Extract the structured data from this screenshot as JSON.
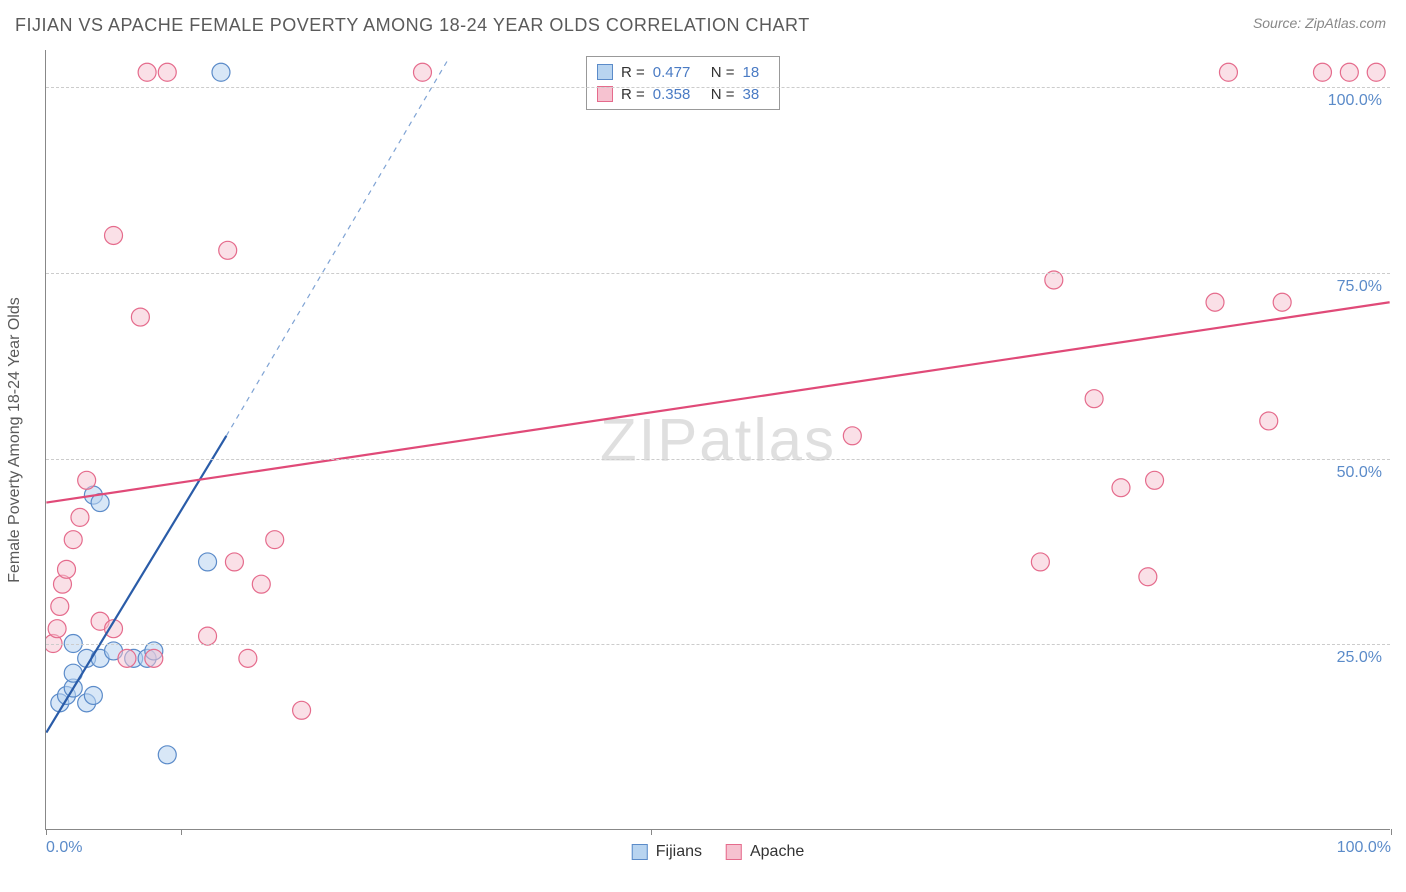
{
  "title": "FIJIAN VS APACHE FEMALE POVERTY AMONG 18-24 YEAR OLDS CORRELATION CHART",
  "source_label": "Source: ZipAtlas.com",
  "y_axis_label": "Female Poverty Among 18-24 Year Olds",
  "watermark_a": "ZIP",
  "watermark_b": "atlas",
  "chart": {
    "type": "scatter",
    "xlim": [
      0,
      100
    ],
    "ylim": [
      0,
      105
    ],
    "x_ticks": [
      0,
      10,
      45,
      100
    ],
    "x_tick_labels": {
      "0": "0.0%",
      "100": "100.0%"
    },
    "y_gridlines": [
      25,
      50,
      75,
      100
    ],
    "y_tick_labels": {
      "25": "25.0%",
      "50": "50.0%",
      "75": "75.0%",
      "100": "100.0%"
    },
    "background_color": "#ffffff",
    "grid_color": "#cccccc",
    "axis_color": "#888888",
    "marker_radius": 9,
    "marker_stroke_width": 1.2,
    "series": [
      {
        "name": "Fijians",
        "fill": "#b8d4f0",
        "stroke": "#5b8bc9",
        "fill_opacity": 0.55,
        "points": [
          [
            1.0,
            17
          ],
          [
            1.5,
            18
          ],
          [
            2.0,
            19
          ],
          [
            3.0,
            17
          ],
          [
            3.5,
            18
          ],
          [
            2.0,
            25
          ],
          [
            3.0,
            23
          ],
          [
            4.0,
            23
          ],
          [
            5.0,
            24
          ],
          [
            6.5,
            23
          ],
          [
            7.5,
            23
          ],
          [
            8.0,
            24
          ],
          [
            3.5,
            45
          ],
          [
            4.0,
            44
          ],
          [
            12.0,
            36
          ],
          [
            9.0,
            10
          ],
          [
            13.0,
            102
          ],
          [
            2.0,
            21
          ]
        ],
        "trend": {
          "x1": 0,
          "y1": 13,
          "x2": 13.4,
          "y2": 53,
          "color": "#2a5ca8",
          "width": 2.2
        },
        "trend_dash": {
          "x1": 13.4,
          "y1": 53,
          "x2": 30,
          "y2": 104,
          "color": "#7fa3d4",
          "width": 1.2
        }
      },
      {
        "name": "Apache",
        "fill": "#f6c2d0",
        "stroke": "#e56b8c",
        "fill_opacity": 0.5,
        "points": [
          [
            0.5,
            25
          ],
          [
            0.8,
            27
          ],
          [
            1.0,
            30
          ],
          [
            1.2,
            33
          ],
          [
            1.5,
            35
          ],
          [
            2.0,
            39
          ],
          [
            2.5,
            42
          ],
          [
            3.0,
            47
          ],
          [
            4.0,
            28
          ],
          [
            5.0,
            27
          ],
          [
            6.0,
            23
          ],
          [
            8.0,
            23
          ],
          [
            12.0,
            26
          ],
          [
            15.0,
            23
          ],
          [
            14.0,
            36
          ],
          [
            17.0,
            39
          ],
          [
            16.0,
            33
          ],
          [
            19.0,
            16
          ],
          [
            7.0,
            69
          ],
          [
            13.5,
            78
          ],
          [
            5.0,
            80
          ],
          [
            7.5,
            102
          ],
          [
            9.0,
            102
          ],
          [
            28.0,
            102
          ],
          [
            60.0,
            53
          ],
          [
            75.0,
            74
          ],
          [
            78.0,
            58
          ],
          [
            74.0,
            36
          ],
          [
            82.0,
            34
          ],
          [
            80.0,
            46
          ],
          [
            82.5,
            47
          ],
          [
            87.0,
            71
          ],
          [
            92.0,
            71
          ],
          [
            91.0,
            55
          ],
          [
            88.0,
            102
          ],
          [
            95.0,
            102
          ],
          [
            97.0,
            102
          ],
          [
            99.0,
            102
          ]
        ],
        "trend": {
          "x1": 0,
          "y1": 44,
          "x2": 100,
          "y2": 71,
          "color": "#e04a78",
          "width": 2.2
        }
      }
    ]
  },
  "top_legend": {
    "rows": [
      {
        "swatch_fill": "#b8d4f0",
        "swatch_stroke": "#5b8bc9",
        "r_label": "R =",
        "r_val": "0.477",
        "n_label": "N =",
        "n_val": "18"
      },
      {
        "swatch_fill": "#f6c2d0",
        "swatch_stroke": "#e56b8c",
        "r_label": "R =",
        "r_val": "0.358",
        "n_label": "N =",
        "n_val": "38"
      }
    ]
  },
  "bottom_legend": [
    {
      "swatch_fill": "#b8d4f0",
      "swatch_stroke": "#5b8bc9",
      "label": "Fijians"
    },
    {
      "swatch_fill": "#f6c2d0",
      "swatch_stroke": "#e56b8c",
      "label": "Apache"
    }
  ]
}
